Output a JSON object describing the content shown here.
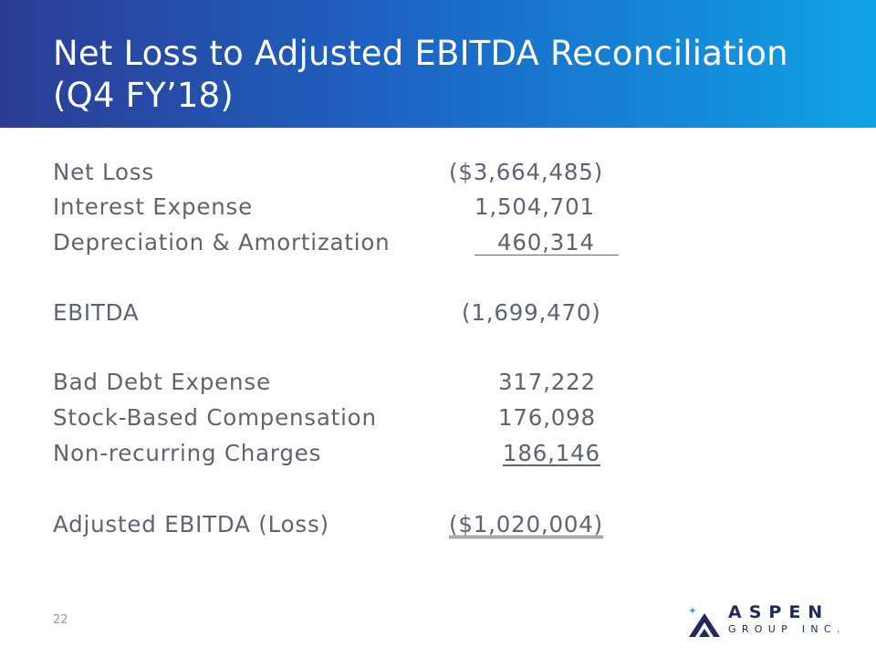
{
  "slide": {
    "title_line1": "Net Loss to Adjusted EBITDA Reconciliation",
    "title_line2": "(Q4 FY’18)",
    "page_number": "22"
  },
  "reconciliation": {
    "net_loss": {
      "label": "Net Loss",
      "value": "($3,664,485)"
    },
    "interest_expense": {
      "label": "Interest Expense",
      "value": "1,504,701"
    },
    "depreciation_amortization": {
      "label": "Depreciation & Amortization",
      "value": "460,314"
    },
    "ebitda": {
      "label": "EBITDA",
      "value": "(1,699,470)"
    },
    "bad_debt_expense": {
      "label": "Bad Debt Expense",
      "value": "317,222"
    },
    "stock_based_compensation": {
      "label": "Stock-Based Compensation",
      "value": "176,098"
    },
    "non_recurring_charges": {
      "label": "Non-recurring Charges",
      "value": "186,146"
    },
    "adjusted_ebitda": {
      "label": "Adjusted EBITDA (Loss)",
      "value": "($1,020,004)"
    }
  },
  "logo": {
    "wordmark": "ASPEN",
    "subtext": "GROUP INC.",
    "colors": {
      "navy": "#1e2a5e",
      "sky": "#1aa3e8"
    }
  },
  "theme": {
    "header_gradient": [
      "#2c3c94",
      "#1d63c4",
      "#0fa2e6"
    ],
    "body_text": "#5f6470"
  }
}
